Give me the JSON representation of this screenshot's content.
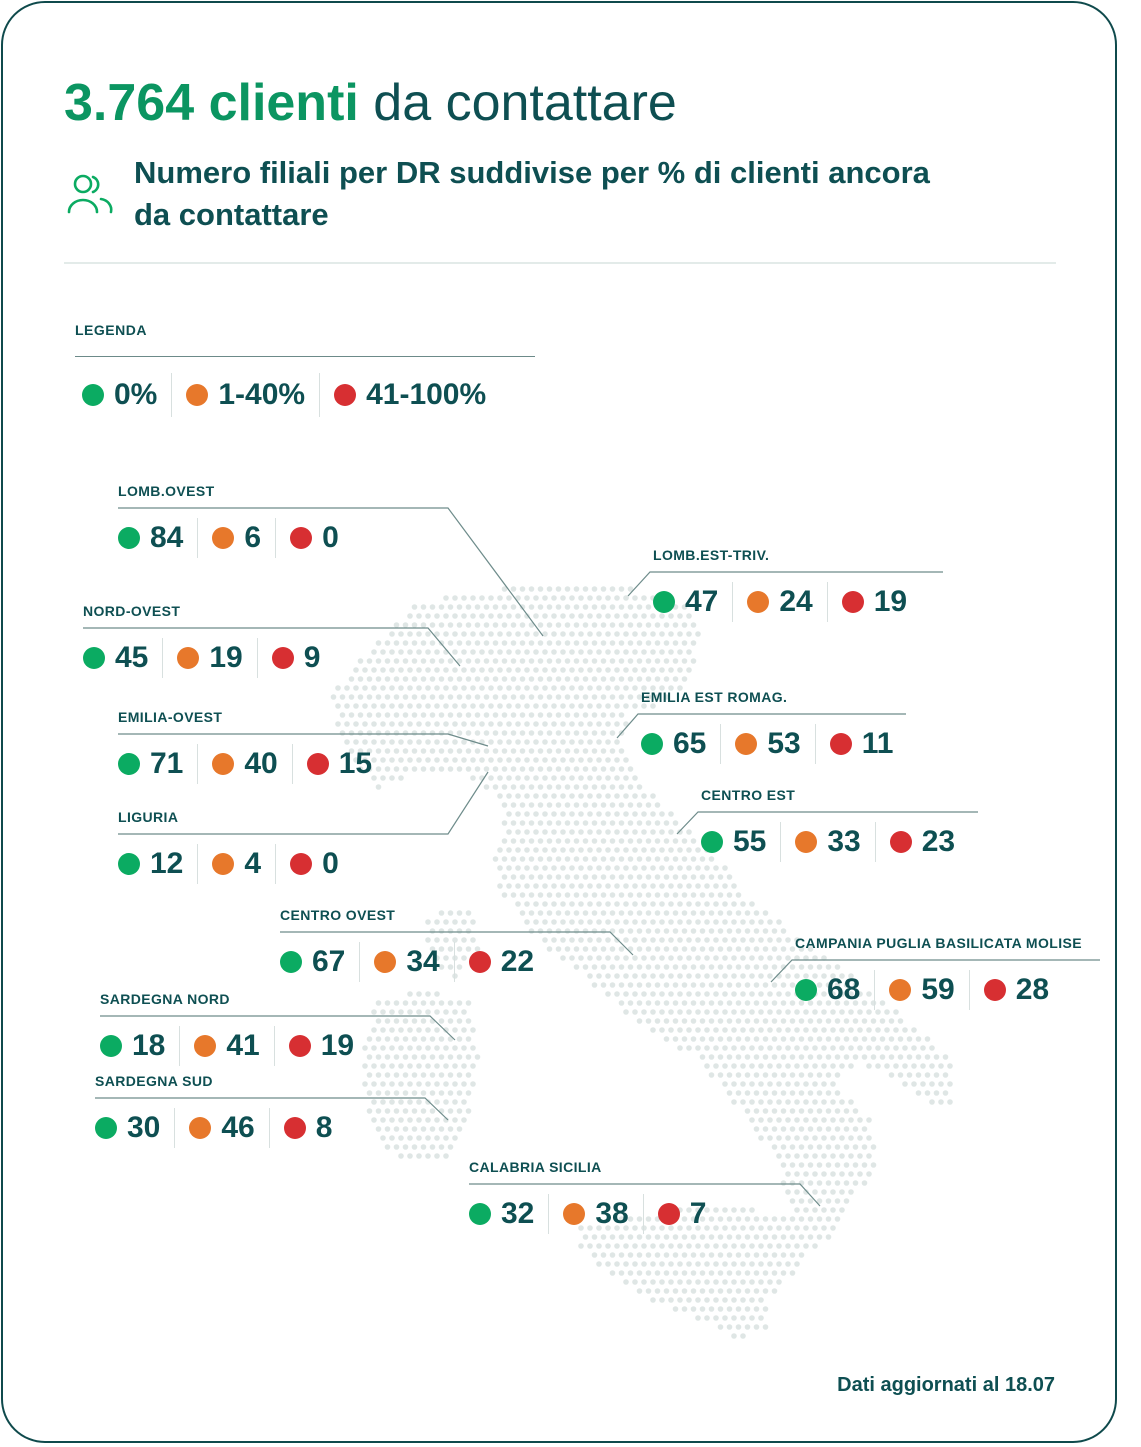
{
  "header": {
    "title_highlight": "3.764 clienti",
    "title_rest": "da contattare",
    "subtitle": "Numero filiali per DR suddivise per % di clienti ancora da contattare"
  },
  "icons": {
    "header_icon": "users-icon",
    "map": "italy-dotted-map"
  },
  "colors": {
    "green": "#0bab62",
    "orange": "#e7782b",
    "red": "#d72f32",
    "accent": "#0b9561",
    "text": "#0e4f52"
  },
  "legend": {
    "title": "LEGENDA",
    "items": [
      {
        "label": "0%",
        "color": "green"
      },
      {
        "label": "1-40%",
        "color": "orange"
      },
      {
        "label": "41-100%",
        "color": "red"
      }
    ]
  },
  "regions": [
    {
      "name": "LOMB.OVEST",
      "green": 84,
      "orange": 6,
      "red": 0
    },
    {
      "name": "NORD-OVEST",
      "green": 45,
      "orange": 19,
      "red": 9
    },
    {
      "name": "EMILIA-OVEST",
      "green": 71,
      "orange": 40,
      "red": 15
    },
    {
      "name": "LIGURIA",
      "green": 12,
      "orange": 4,
      "red": 0
    },
    {
      "name": "CENTRO OVEST",
      "green": 67,
      "orange": 34,
      "red": 22
    },
    {
      "name": "SARDEGNA NORD",
      "green": 18,
      "orange": 41,
      "red": 19
    },
    {
      "name": "SARDEGNA SUD",
      "green": 30,
      "orange": 46,
      "red": 8
    },
    {
      "name": "CALABRIA SICILIA",
      "green": 32,
      "orange": 38,
      "red": 7
    },
    {
      "name": "LOMB.EST-TRIV.",
      "green": 47,
      "orange": 24,
      "red": 19
    },
    {
      "name": "EMILIA EST ROMAG.",
      "green": 65,
      "orange": 53,
      "red": 11
    },
    {
      "name": "CENTRO EST",
      "green": 55,
      "orange": 33,
      "red": 23
    },
    {
      "name": "CAMPANIA PUGLIA BASILICATA MOLISE",
      "green": 68,
      "orange": 59,
      "red": 28
    }
  ],
  "footer": {
    "note": "Dati aggiornati al 18.07"
  }
}
